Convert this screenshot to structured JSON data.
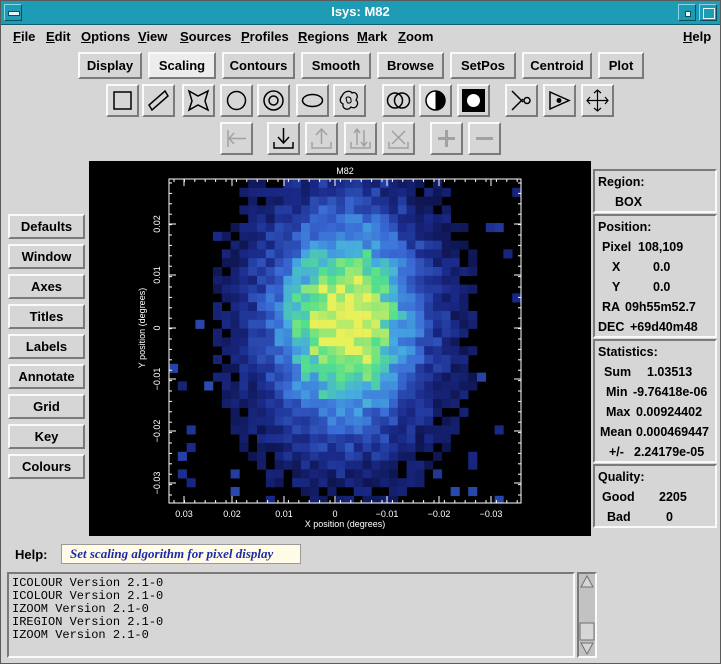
{
  "window": {
    "title": "Isys: M82"
  },
  "menubar": {
    "items": [
      "File",
      "Edit",
      "Options",
      "View",
      "Sources",
      "Profiles",
      "Regions",
      "Mark",
      "Zoom",
      "Help"
    ]
  },
  "tabs": [
    "Display",
    "Scaling",
    "Contours",
    "Smooth",
    "Browse",
    "SetPos",
    "Centroid",
    "Plot"
  ],
  "active_tab": "Scaling",
  "region_tools": [
    "box-icon",
    "rotated-box-icon",
    "polygon-icon",
    "circle-icon",
    "annulus-icon",
    "ellipse-icon",
    "irregular-icon",
    "union-icon",
    "complement-icon",
    "exclude-icon",
    "cut-icon",
    "arrow-icon",
    "move-icon"
  ],
  "action_tools": [
    "prev-icon",
    "import-icon",
    "export-icon",
    "shift-icon",
    "delete-icon",
    "plus-icon",
    "minus-icon"
  ],
  "sidebar": {
    "buttons": [
      "Defaults",
      "Window",
      "Axes",
      "Titles",
      "Labels",
      "Annotate",
      "Grid",
      "Key",
      "Colours"
    ]
  },
  "plot": {
    "title": "M82",
    "xlabel": "X position (degrees)",
    "ylabel": "Y position (degrees)",
    "xticks": [
      "0.03",
      "0.02",
      "0.01",
      "0",
      "−0.01",
      "−0.02",
      "−0.03"
    ],
    "yticks": [
      "0.02",
      "0.01",
      "0",
      "−0.01",
      "−0.02",
      "−0.03"
    ],
    "peak_color": "#e8f05a",
    "core_color": "#52e08c",
    "halo_color": "#3a6ad6",
    "edge_color": "#1a2a8a"
  },
  "info": {
    "region_title": "Region:",
    "region_value": "BOX",
    "position_title": "Position:",
    "pixel_label": "Pixel",
    "pixel_value": "108,109",
    "x_label": "X",
    "x_value": "0.0",
    "y_label": "Y",
    "y_value": "0.0",
    "ra_label": "RA",
    "ra_value": "09h55m52.7",
    "dec_label": "DEC",
    "dec_value": "+69d40m48",
    "stats_title": "Statistics:",
    "sum_label": "Sum",
    "sum_value": "1.03513",
    "min_label": "Min",
    "min_value": "-9.76418e-06",
    "max_label": "Max",
    "max_value": "0.00924402",
    "mean_label": "Mean",
    "mean_value": "0.000469447",
    "pm_label": "+/-",
    "pm_value": "2.24179e-05",
    "quality_title": "Quality:",
    "good_label": "Good",
    "good_value": "2205",
    "bad_label": "Bad",
    "bad_value": "0"
  },
  "help": {
    "label": "Help:",
    "text": "Set scaling algorithm for pixel display"
  },
  "log": [
    "ICOLOUR Version 2.1-0",
    "ICOLOUR Version 2.1-0",
    "IZOOM Version 2.1-0",
    "IREGION Version 2.1-0",
    "IZOOM Version 2.1-0"
  ]
}
